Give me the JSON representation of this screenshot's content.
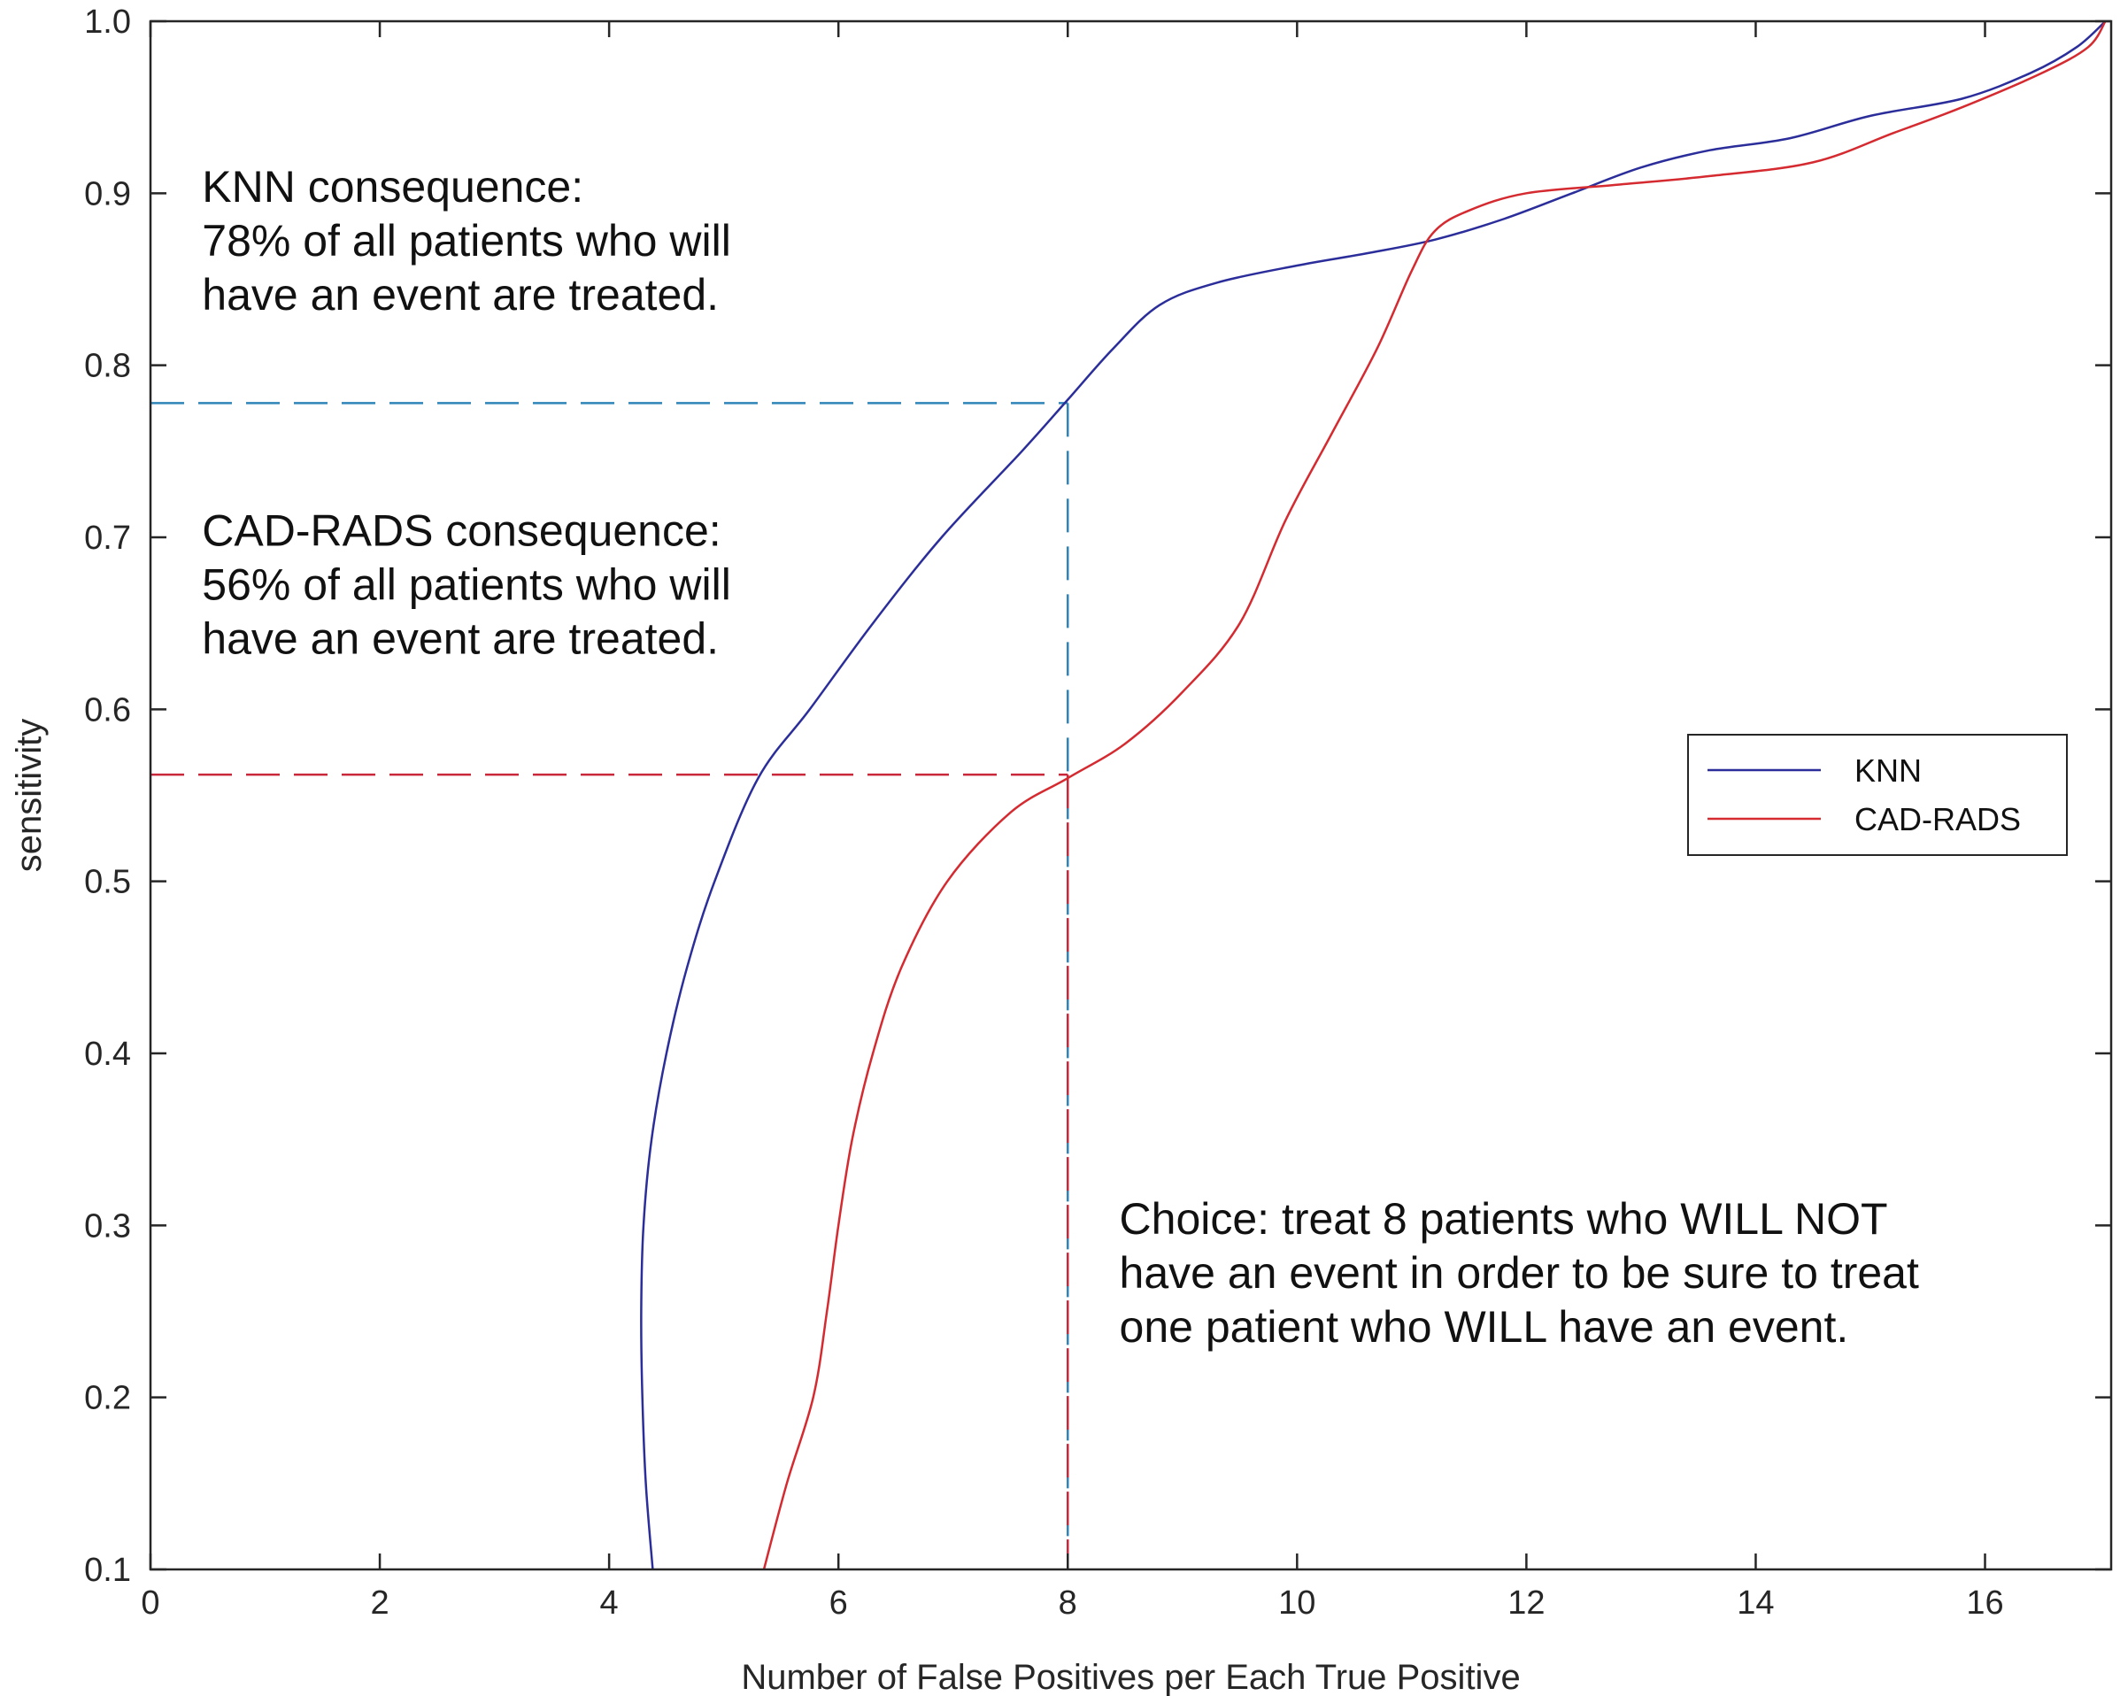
{
  "chart_data": {
    "type": "line",
    "title": "",
    "xlabel": "Number of False Positives per Each True Positive",
    "ylabel": "sensitivity",
    "xlim": [
      0,
      17.1
    ],
    "ylim": [
      0.1,
      1.0
    ],
    "xticks": [
      0,
      2,
      4,
      6,
      8,
      10,
      12,
      14,
      16
    ],
    "yticks": [
      0.1,
      0.2,
      0.3,
      0.4,
      0.5,
      0.6,
      0.7,
      0.8,
      0.9,
      1.0
    ],
    "xtick_labels": [
      "0",
      "2",
      "4",
      "6",
      "8",
      "10",
      "12",
      "14",
      "16"
    ],
    "ytick_labels": [
      "0.1",
      "0.2",
      "0.3",
      "0.4",
      "0.5",
      "0.6",
      "0.7",
      "0.8",
      "0.9",
      "1.0"
    ],
    "grid": false,
    "legend_position": "right",
    "series": [
      {
        "name": "KNN",
        "color": "#2b2e9a",
        "points": [
          [
            4.38,
            0.1
          ],
          [
            4.32,
            0.15
          ],
          [
            4.29,
            0.2
          ],
          [
            4.28,
            0.25
          ],
          [
            4.3,
            0.3
          ],
          [
            4.37,
            0.35
          ],
          [
            4.5,
            0.4
          ],
          [
            4.68,
            0.45
          ],
          [
            4.92,
            0.5
          ],
          [
            5.3,
            0.56
          ],
          [
            5.75,
            0.6
          ],
          [
            6.3,
            0.65
          ],
          [
            6.9,
            0.7
          ],
          [
            7.6,
            0.75
          ],
          [
            8.0,
            0.78
          ],
          [
            8.4,
            0.81
          ],
          [
            8.8,
            0.835
          ],
          [
            9.3,
            0.848
          ],
          [
            10.0,
            0.858
          ],
          [
            10.6,
            0.865
          ],
          [
            11.2,
            0.873
          ],
          [
            11.8,
            0.885
          ],
          [
            12.4,
            0.9
          ],
          [
            13.0,
            0.915
          ],
          [
            13.6,
            0.925
          ],
          [
            14.3,
            0.932
          ],
          [
            15.0,
            0.945
          ],
          [
            15.8,
            0.955
          ],
          [
            16.4,
            0.97
          ],
          [
            16.8,
            0.985
          ],
          [
            17.05,
            1.0
          ]
        ]
      },
      {
        "name": "CAD-RADS",
        "color": "#d42a30",
        "points": [
          [
            5.35,
            0.1
          ],
          [
            5.55,
            0.15
          ],
          [
            5.78,
            0.2
          ],
          [
            5.9,
            0.25
          ],
          [
            6.0,
            0.3
          ],
          [
            6.12,
            0.35
          ],
          [
            6.3,
            0.4
          ],
          [
            6.55,
            0.45
          ],
          [
            6.95,
            0.5
          ],
          [
            7.5,
            0.54
          ],
          [
            8.0,
            0.56
          ],
          [
            8.5,
            0.58
          ],
          [
            9.0,
            0.61
          ],
          [
            9.5,
            0.65
          ],
          [
            9.9,
            0.71
          ],
          [
            10.3,
            0.76
          ],
          [
            10.7,
            0.81
          ],
          [
            11.0,
            0.855
          ],
          [
            11.2,
            0.878
          ],
          [
            11.5,
            0.89
          ],
          [
            12.0,
            0.9
          ],
          [
            12.8,
            0.905
          ],
          [
            13.6,
            0.91
          ],
          [
            14.5,
            0.918
          ],
          [
            15.2,
            0.935
          ],
          [
            15.8,
            0.95
          ],
          [
            16.5,
            0.97
          ],
          [
            16.9,
            0.985
          ],
          [
            17.05,
            1.0
          ]
        ]
      }
    ],
    "reference_lines": [
      {
        "name": "KNN",
        "x": 8,
        "y": 0.778,
        "color": "#2f84b8"
      },
      {
        "name": "CAD-RADS",
        "x": 8,
        "y": 0.562,
        "color": "#c8283a"
      }
    ],
    "annotations": [
      {
        "lines": [
          "KNN consequence:",
          "78% of all patients who will",
          "have an event are treated."
        ],
        "x": 0.45,
        "y": 0.895
      },
      {
        "lines": [
          "CAD-RADS consequence:",
          "56% of all patients who will",
          "have an event are treated."
        ],
        "x": 0.45,
        "y": 0.695
      },
      {
        "lines": [
          "Choice: treat 8 patients who WILL NOT",
          "have an event in order to be sure to treat",
          "one patient who WILL have an event."
        ],
        "x": 8.45,
        "y": 0.295
      }
    ]
  }
}
